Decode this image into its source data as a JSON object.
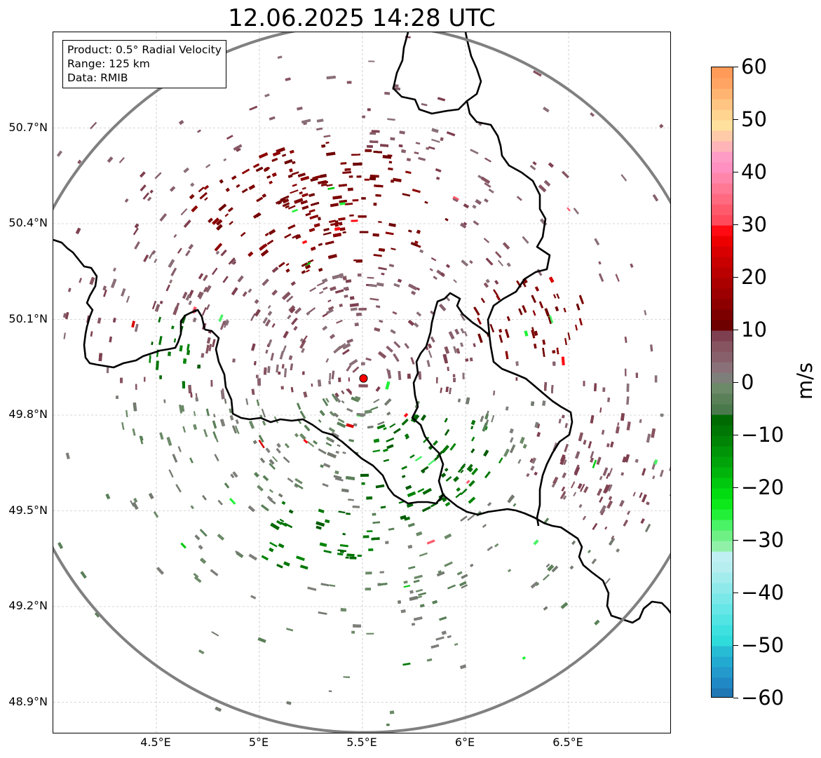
{
  "title": "12.06.2025 14:28 UTC",
  "info": {
    "product": "Product: 0.5° Radial Velocity",
    "range": "Range: 125 km",
    "data": "Data: RMIB"
  },
  "map": {
    "lon_range": [
      4.0,
      7.0
    ],
    "lat_range": [
      48.8,
      51.0
    ],
    "radar_site": {
      "lon": 5.505,
      "lat": 49.915
    },
    "range_ring_km": 125,
    "lat_ticks": [
      {
        "value": 48.9,
        "label": "48.9°N"
      },
      {
        "value": 49.2,
        "label": "49.2°N"
      },
      {
        "value": 49.5,
        "label": "49.5°N"
      },
      {
        "value": 49.8,
        "label": "49.8°N"
      },
      {
        "value": 50.1,
        "label": "50.1°N"
      },
      {
        "value": 50.4,
        "label": "50.4°N"
      },
      {
        "value": 50.7,
        "label": "50.7°N"
      }
    ],
    "lon_ticks": [
      {
        "value": 4.5,
        "label": "4.5°E"
      },
      {
        "value": 5.0,
        "label": "5°E"
      },
      {
        "value": 5.5,
        "label": "5.5°E"
      },
      {
        "value": 6.0,
        "label": "6°E"
      },
      {
        "value": 6.5,
        "label": "6.5°E"
      }
    ]
  },
  "colorbar": {
    "min": -60,
    "max": 60,
    "unit": "m/s",
    "tick_labels": [
      {
        "value": 60,
        "label": "60"
      },
      {
        "value": 50,
        "label": "50"
      },
      {
        "value": 40,
        "label": "40"
      },
      {
        "value": 30,
        "label": "30"
      },
      {
        "value": 20,
        "label": "20"
      },
      {
        "value": 10,
        "label": "10"
      },
      {
        "value": 0,
        "label": "0"
      },
      {
        "value": -10,
        "label": "−10"
      },
      {
        "value": -20,
        "label": "−20"
      },
      {
        "value": -30,
        "label": "−30"
      },
      {
        "value": -40,
        "label": "−40"
      },
      {
        "value": -50,
        "label": "−50"
      },
      {
        "value": -60,
        "label": "−60"
      }
    ],
    "bands": [
      {
        "from": -60,
        "to": -58,
        "color": "#1f77b4"
      },
      {
        "from": -58,
        "to": -56,
        "color": "#2088c4"
      },
      {
        "from": -56,
        "to": -54,
        "color": "#2399cc"
      },
      {
        "from": -54,
        "to": -52,
        "color": "#22aad0"
      },
      {
        "from": -52,
        "to": -50,
        "color": "#27bcd4"
      },
      {
        "from": -50,
        "to": -48,
        "color": "#2fdbdb"
      },
      {
        "from": -48,
        "to": -46,
        "color": "#3ee0e0"
      },
      {
        "from": -46,
        "to": -44,
        "color": "#52e3e3"
      },
      {
        "from": -44,
        "to": -42,
        "color": "#66e6e6"
      },
      {
        "from": -42,
        "to": -40,
        "color": "#7ae8e8"
      },
      {
        "from": -40,
        "to": -38,
        "color": "#8eeaea"
      },
      {
        "from": -38,
        "to": -36,
        "color": "#a2eced"
      },
      {
        "from": -36,
        "to": -34,
        "color": "#b6eef0"
      },
      {
        "from": -34,
        "to": -32,
        "color": "#bfeff2"
      },
      {
        "from": -32,
        "to": -30,
        "color": "#90f0a8"
      },
      {
        "from": -30,
        "to": -28,
        "color": "#6ef085"
      },
      {
        "from": -28,
        "to": -26,
        "color": "#4af266"
      },
      {
        "from": -26,
        "to": -24,
        "color": "#22f038"
      },
      {
        "from": -24,
        "to": -22,
        "color": "#0ce81a"
      },
      {
        "from": -22,
        "to": -20,
        "color": "#00dc10"
      },
      {
        "from": -20,
        "to": -18,
        "color": "#00c80e"
      },
      {
        "from": -18,
        "to": -16,
        "color": "#00b40c"
      },
      {
        "from": -16,
        "to": -14,
        "color": "#00a40a"
      },
      {
        "from": -14,
        "to": -12,
        "color": "#009408"
      },
      {
        "from": -12,
        "to": -10,
        "color": "#008406"
      },
      {
        "from": -10,
        "to": -8,
        "color": "#007604"
      },
      {
        "from": -8,
        "to": -6,
        "color": "#006a02"
      },
      {
        "from": -6,
        "to": -4,
        "color": "#4a7a4c"
      },
      {
        "from": -4,
        "to": -2,
        "color": "#5a8058"
      },
      {
        "from": -2,
        "to": 0,
        "color": "#6c8a68"
      },
      {
        "from": 0,
        "to": 2,
        "color": "#7e7e7a"
      },
      {
        "from": 2,
        "to": 4,
        "color": "#8a7078"
      },
      {
        "from": 4,
        "to": 6,
        "color": "#87606c"
      },
      {
        "from": 6,
        "to": 8,
        "color": "#865460"
      },
      {
        "from": 8,
        "to": 10,
        "color": "#7e4050"
      },
      {
        "from": 10,
        "to": 12,
        "color": "#6e0000"
      },
      {
        "from": 12,
        "to": 14,
        "color": "#7c0000"
      },
      {
        "from": 14,
        "to": 16,
        "color": "#8c0000"
      },
      {
        "from": 16,
        "to": 18,
        "color": "#9c0000"
      },
      {
        "from": 18,
        "to": 20,
        "color": "#aa0000"
      },
      {
        "from": 20,
        "to": 22,
        "color": "#ba0000"
      },
      {
        "from": 22,
        "to": 24,
        "color": "#c80000"
      },
      {
        "from": 24,
        "to": 26,
        "color": "#d80000"
      },
      {
        "from": 26,
        "to": 28,
        "color": "#ec0000"
      },
      {
        "from": 28,
        "to": 30,
        "color": "#ff0a12"
      },
      {
        "from": 30,
        "to": 32,
        "color": "#ff4a5c"
      },
      {
        "from": 32,
        "to": 34,
        "color": "#ff5a6c"
      },
      {
        "from": 34,
        "to": 36,
        "color": "#ff6a80"
      },
      {
        "from": 36,
        "to": 38,
        "color": "#ff7894"
      },
      {
        "from": 38,
        "to": 40,
        "color": "#ff86aa"
      },
      {
        "from": 40,
        "to": 42,
        "color": "#ff90c0"
      },
      {
        "from": 42,
        "to": 44,
        "color": "#ff9cc6"
      },
      {
        "from": 44,
        "to": 46,
        "color": "#ffb4b8"
      },
      {
        "from": 46,
        "to": 48,
        "color": "#ffcaa8"
      },
      {
        "from": 48,
        "to": 50,
        "color": "#ffe09c"
      },
      {
        "from": 50,
        "to": 52,
        "color": "#ffd490"
      },
      {
        "from": 52,
        "to": 54,
        "color": "#ffc482"
      },
      {
        "from": 54,
        "to": 56,
        "color": "#ffb472"
      },
      {
        "from": 56,
        "to": 58,
        "color": "#ffa462"
      },
      {
        "from": 58,
        "to": 60,
        "color": "#ff9a58"
      }
    ]
  },
  "colors": {
    "border": "#000000",
    "range_ring": "#808080",
    "radar_site_marker": "#ff0000",
    "grid": "#b0b0b0"
  }
}
